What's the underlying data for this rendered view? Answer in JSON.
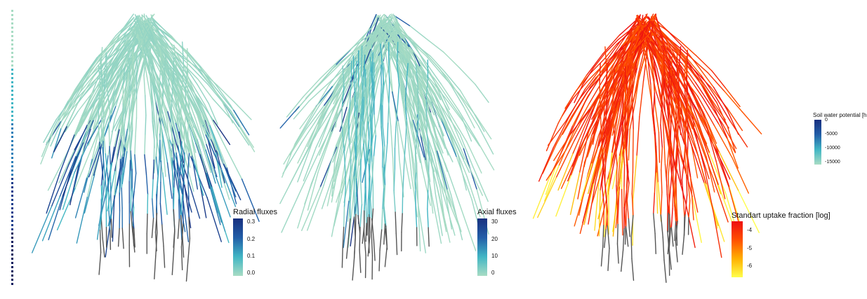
{
  "chart_data": [
    {
      "type": "heatmap",
      "panel": "root-system-radial",
      "title": "",
      "legend": {
        "title": "Radial fluxes",
        "ticks": [
          "0.3",
          "0.2",
          "0.1",
          "0.0"
        ],
        "range": [
          0.0,
          0.3
        ],
        "colors": [
          "#a8dcc4",
          "#41b6c4",
          "#225ea8",
          "#18307f"
        ]
      }
    },
    {
      "type": "heatmap",
      "panel": "root-system-axial",
      "title": "",
      "legend": {
        "title": "Axial fluxes",
        "ticks": [
          "30",
          "20",
          "10",
          "0"
        ],
        "range": [
          0,
          30
        ],
        "colors": [
          "#a8dcc4",
          "#41b6c4",
          "#225ea8",
          "#18307f"
        ]
      }
    },
    {
      "type": "heatmap",
      "panel": "root-system-uptake",
      "title": "",
      "legend": {
        "title": "Standart uptake fraction [log]",
        "ticks": [
          "-4",
          "-5",
          "-6"
        ],
        "range": [
          -6.5,
          -3.3
        ],
        "colors": [
          "#ffff4c",
          "#ffb000",
          "#ff5000",
          "#ee1010"
        ]
      },
      "legend_secondary": {
        "title": "Soil water potential [h",
        "ticks": [
          "0",
          "-5000",
          "-10000",
          "-15000"
        ],
        "range": [
          -15000,
          0
        ],
        "colors": [
          "#a8dcc4",
          "#41b6c4",
          "#225ea8",
          "#18307f"
        ]
      }
    }
  ],
  "colors": {
    "soil_strip": [
      "#a8dcc4",
      "#41b6c4",
      "#2c7fb8",
      "#1a3e8c",
      "#0c1a5e"
    ],
    "root_base_grey": "#555555",
    "uptake_accent": "#ff5a00"
  }
}
